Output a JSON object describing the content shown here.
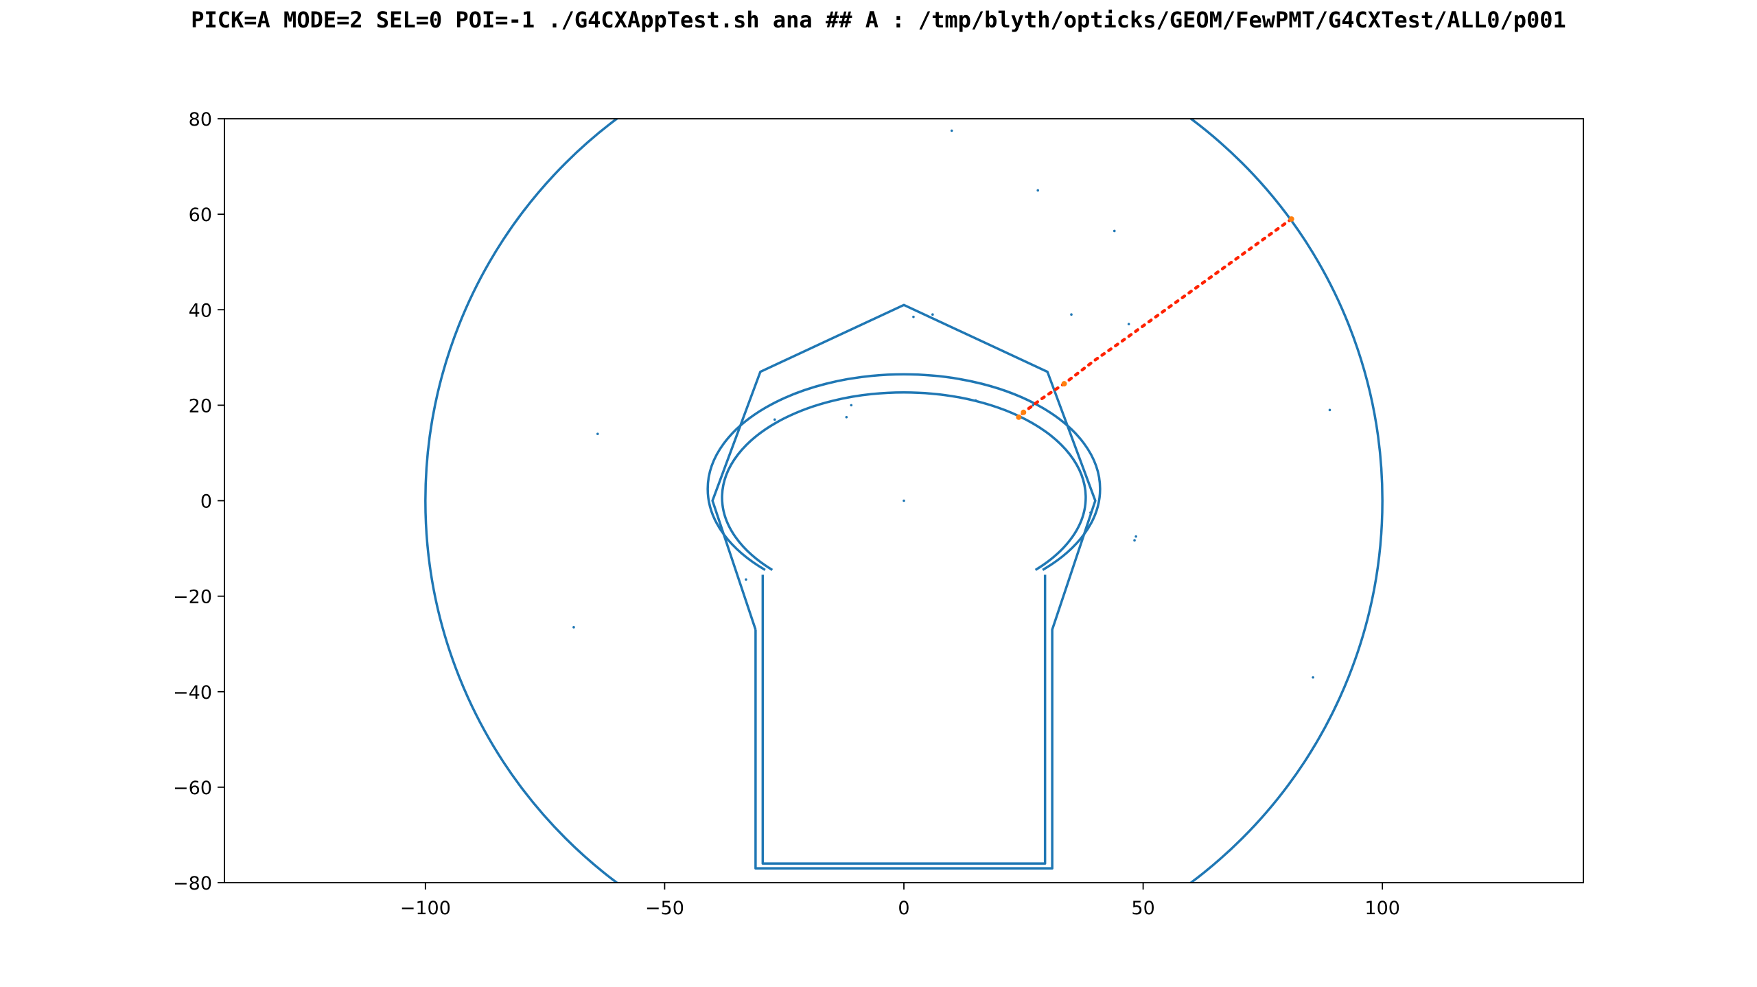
{
  "chart_data": {
    "type": "scatter",
    "title": "PICK=A MODE=2 SEL=0 POI=-1 ./G4CXAppTest.sh ana  ## A : /tmp/blyth/opticks/GEOM/FewPMT/G4CXTest/ALL0/p001",
    "xlabel": "",
    "ylabel": "",
    "xlim": [
      -142,
      142
    ],
    "ylim": [
      -80,
      80
    ],
    "x_ticks": [
      -100,
      -50,
      0,
      50,
      100
    ],
    "x_tick_labels": [
      "−100",
      "−50",
      "0",
      "50",
      "100"
    ],
    "y_ticks": [
      80,
      60,
      40,
      20,
      0,
      -20,
      -40,
      -60,
      -80
    ],
    "y_tick_labels": [
      "80",
      "60",
      "40",
      "20",
      "0",
      "−20",
      "−40",
      "−60",
      "−80"
    ],
    "grid": false,
    "colors": {
      "outline": "#1f77b4",
      "photon_path": "#ff2200",
      "photon_hit": "#ff7f0e",
      "axes": "#000000"
    },
    "series": [
      {
        "shape": "circle",
        "center": [
          0,
          0
        ],
        "radius": 100
      },
      {
        "shape": "open_path",
        "points": [
          [
            -31,
            -27
          ],
          [
            -40,
            0
          ],
          [
            -30,
            27
          ],
          [
            0,
            41
          ],
          [
            30,
            27
          ],
          [
            40,
            0
          ],
          [
            31,
            -27
          ],
          [
            31,
            -77
          ],
          [
            -31,
            -77
          ],
          [
            -31,
            -27
          ]
        ]
      },
      {
        "shape": "open_path",
        "points": [
          [
            -29.5,
            -15.5
          ],
          [
            -29.5,
            -76
          ],
          [
            29.5,
            -76
          ],
          [
            29.5,
            -15.5
          ]
        ]
      },
      {
        "shape": "ellipse_arc",
        "center": [
          0,
          0
        ],
        "semi_axes": [
          41,
          24
        ],
        "start_point": [
          -29,
          -14.5
        ],
        "end_point": [
          29,
          -14.5
        ]
      },
      {
        "shape": "ellipse_arc",
        "center": [
          0,
          0
        ],
        "semi_axes": [
          38,
          22
        ],
        "start_point": [
          -27.5,
          -14.5
        ],
        "end_point": [
          27.5,
          -14.5
        ]
      },
      {
        "shape": "scatter",
        "points": [
          [
            10,
            77.5
          ],
          [
            28,
            65
          ],
          [
            44,
            56.5
          ],
          [
            35,
            39
          ],
          [
            47,
            37
          ],
          [
            2,
            38.5
          ],
          [
            6,
            39
          ],
          [
            -64,
            14
          ],
          [
            89,
            19
          ],
          [
            -12,
            17.5
          ],
          [
            -11,
            20
          ],
          [
            15,
            21
          ],
          [
            -33,
            -16.5
          ],
          [
            -69,
            -26.5
          ],
          [
            48.5,
            -7.5
          ],
          [
            48.2,
            -8.3
          ],
          [
            39,
            -2.5
          ],
          [
            85.5,
            -37
          ],
          [
            0,
            0
          ],
          [
            -27,
            17
          ],
          [
            27,
            20
          ]
        ]
      }
    ],
    "photon_path": {
      "points": [
        [
          81,
          59
        ],
        [
          72,
          52.5
        ],
        [
          63,
          46
        ],
        [
          54,
          39.5
        ],
        [
          45,
          33
        ],
        [
          40,
          29.5
        ],
        [
          33.5,
          24.5
        ],
        [
          29,
          21.5
        ],
        [
          25,
          18.5
        ],
        [
          24,
          17.5
        ]
      ],
      "hits": [
        [
          81,
          59
        ],
        [
          33.5,
          24.5
        ],
        [
          25,
          18.5
        ],
        [
          24,
          17.5
        ]
      ]
    }
  }
}
